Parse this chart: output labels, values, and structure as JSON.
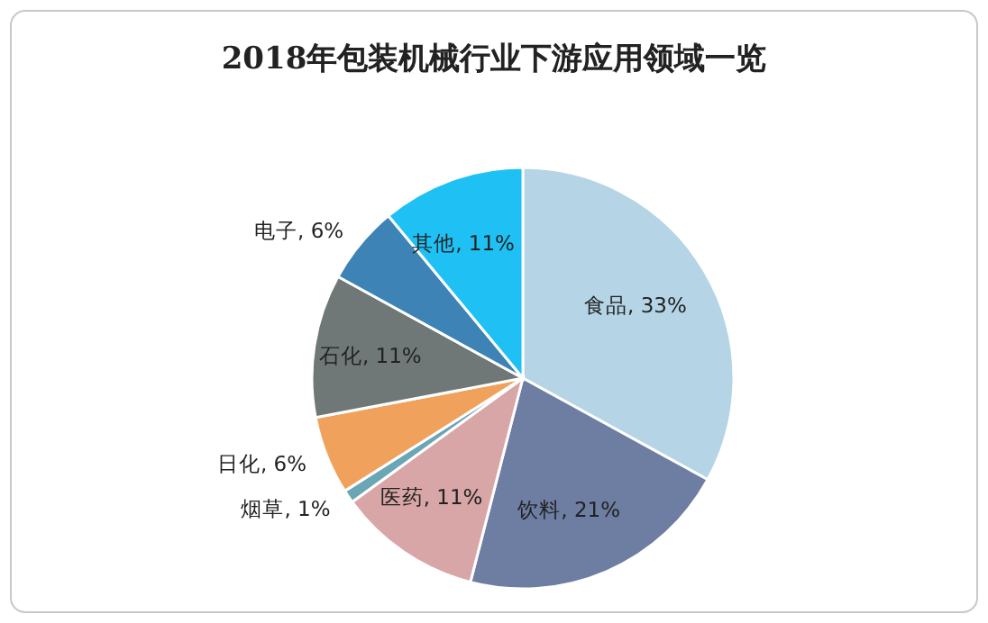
{
  "chart_data": {
    "type": "pie",
    "title": "2018年包装机械行业下游应用领域一览",
    "categories": [
      "食品",
      "饮料",
      "医药",
      "烟草",
      "日化",
      "石化",
      "电子",
      "其他"
    ],
    "values": [
      33,
      21,
      11,
      1,
      6,
      11,
      6,
      11
    ],
    "value_labels": [
      ", 33%",
      ", 21%",
      ", 11%",
      ", 1%",
      ", 6%",
      ", 11%",
      ", 6%",
      ", 11%"
    ],
    "colors": [
      "#b5d5e7",
      "#6e7da2",
      "#d8a6a7",
      "#6aa6b6",
      "#f0a25c",
      "#6f7876",
      "#3d83b5",
      "#1fc1f5"
    ]
  }
}
